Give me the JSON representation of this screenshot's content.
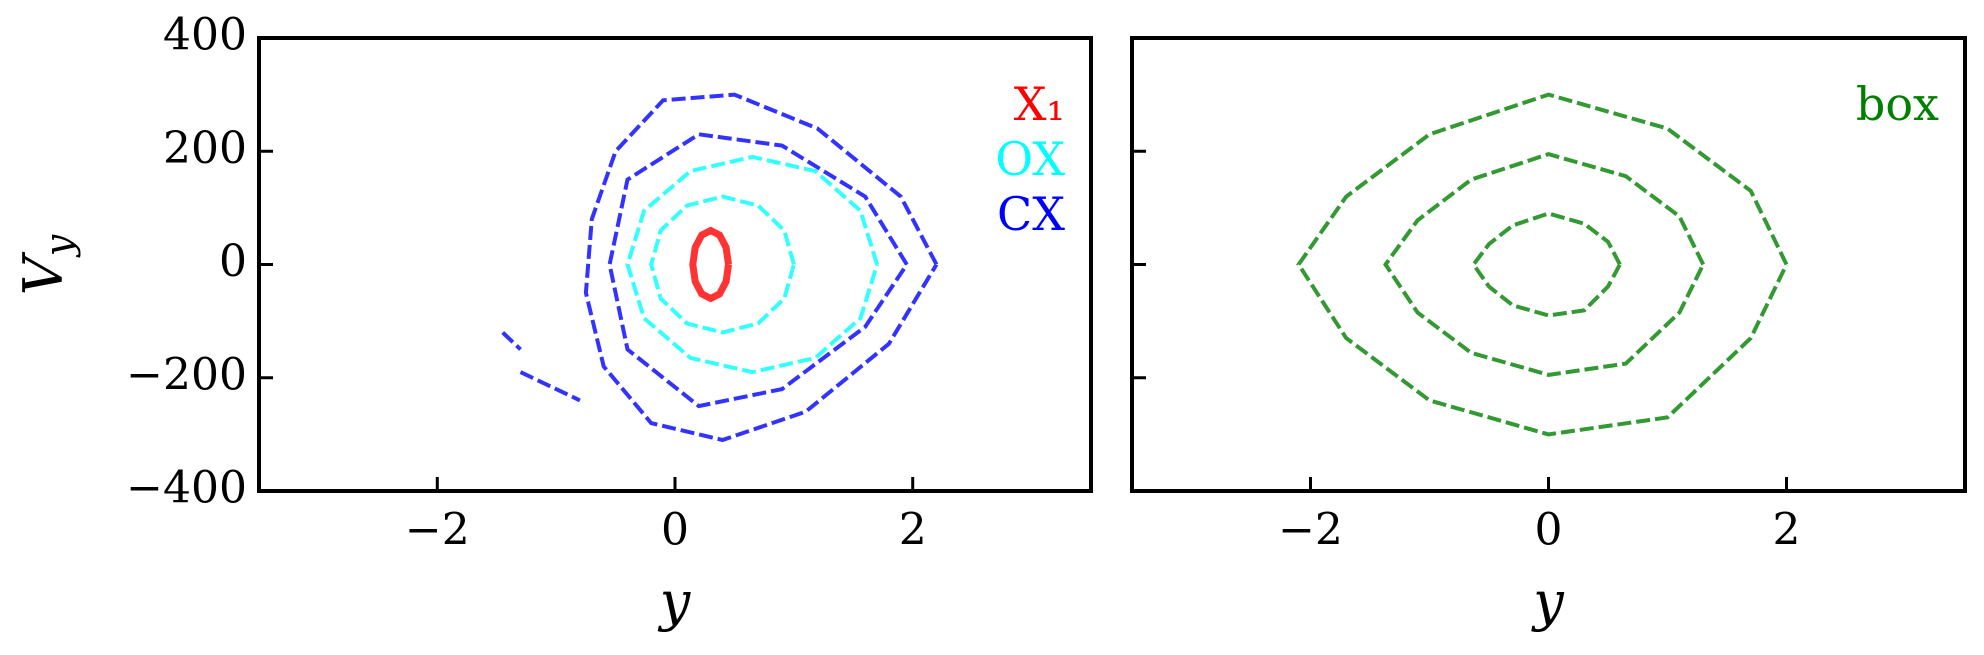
{
  "chart_data": [
    {
      "type": "line",
      "xlabel": "y",
      "ylabel": "Vy",
      "xlim": [
        -3.5,
        3.5
      ],
      "ylim": [
        -400,
        400
      ],
      "xticks": [
        {
          "value": -2,
          "label": "−2"
        },
        0,
        2
      ],
      "yticks": [
        {
          "value": -400,
          "label": "−400"
        },
        {
          "value": -200,
          "label": "−200"
        },
        0,
        200,
        400
      ],
      "show_ytick_labels": true,
      "legend": "upper right",
      "series": [
        {
          "name": "X₁",
          "color": "#ff0000",
          "x": [
            0.45,
            0.43,
            0.375,
            0.3,
            0.225,
            0.17,
            0.15,
            0.17,
            0.225,
            0.3,
            0.375,
            0.43,
            0.45
          ],
          "values": [
            0,
            30,
            52,
            60,
            52,
            30,
            0,
            -30,
            -52,
            -60,
            -52,
            -30,
            0
          ]
        },
        {
          "name": "OX",
          "color": "#00ffff",
          "x": [
            1.7,
            1.56,
            1.18,
            0.65,
            0.13,
            -0.26,
            -0.4,
            -0.26,
            0.13,
            0.65,
            1.18,
            1.56,
            1.7,
            null,
            1.0,
            0.92,
            0.7,
            0.4,
            0.1,
            -0.12,
            -0.2,
            -0.12,
            0.1,
            0.4,
            0.7,
            0.92,
            1.0
          ],
          "values": [
            0,
            95,
            165,
            190,
            165,
            95,
            0,
            -95,
            -165,
            -190,
            -165,
            -95,
            0,
            null,
            0,
            60,
            104,
            120,
            104,
            60,
            0,
            -60,
            -104,
            -120,
            -104,
            -60,
            0
          ]
        },
        {
          "name": "CX",
          "color": "#0000ff",
          "x": [
            2.2,
            1.9,
            1.2,
            0.5,
            -0.1,
            -0.5,
            -0.7,
            -0.75,
            -0.6,
            -0.2,
            0.4,
            1.1,
            1.8,
            2.2,
            null,
            1.95,
            1.6,
            0.9,
            0.2,
            -0.4,
            -0.55,
            -0.4,
            0.2,
            0.9,
            1.6,
            1.95,
            null,
            -1.45,
            -1.3,
            null,
            -1.3,
            -0.8
          ],
          "values": [
            0,
            120,
            240,
            300,
            290,
            200,
            80,
            -50,
            -180,
            -280,
            -310,
            -260,
            -140,
            0,
            null,
            0,
            120,
            210,
            230,
            150,
            0,
            -150,
            -250,
            -220,
            -110,
            0,
            null,
            -120,
            -150,
            null,
            -190,
            -240
          ]
        }
      ]
    },
    {
      "type": "line",
      "xlabel": "y",
      "xlim": [
        -3.5,
        3.5
      ],
      "ylim": [
        -400,
        400
      ],
      "xticks": [
        {
          "value": -2,
          "label": "−2"
        },
        0,
        2
      ],
      "yticks": [
        -400,
        -200,
        0,
        200,
        400
      ],
      "show_ytick_labels": false,
      "legend": "upper right",
      "series": [
        {
          "name": "box",
          "color": "#008000",
          "x": [
            2.0,
            1.7,
            1.0,
            0,
            -1.0,
            -1.7,
            -2.1,
            -1.7,
            -1.0,
            0,
            1.0,
            1.7,
            2.0,
            null,
            1.3,
            1.1,
            0.65,
            0,
            -0.65,
            -1.1,
            -1.37,
            -1.1,
            -0.65,
            0,
            0.65,
            1.1,
            1.3,
            null,
            0.6,
            0.5,
            0.3,
            0,
            -0.3,
            -0.5,
            -0.63,
            -0.5,
            -0.3,
            0,
            0.3,
            0.5,
            0.6
          ],
          "values": [
            0,
            130,
            240,
            300,
            230,
            120,
            0,
            -130,
            -240,
            -300,
            -270,
            -130,
            0,
            null,
            0,
            85,
            156,
            195,
            150,
            78,
            0,
            -85,
            -156,
            -195,
            -175,
            -85,
            0,
            null,
            0,
            40,
            72,
            90,
            69,
            36,
            0,
            -39,
            -72,
            -90,
            -81,
            -39,
            0
          ]
        }
      ]
    }
  ]
}
